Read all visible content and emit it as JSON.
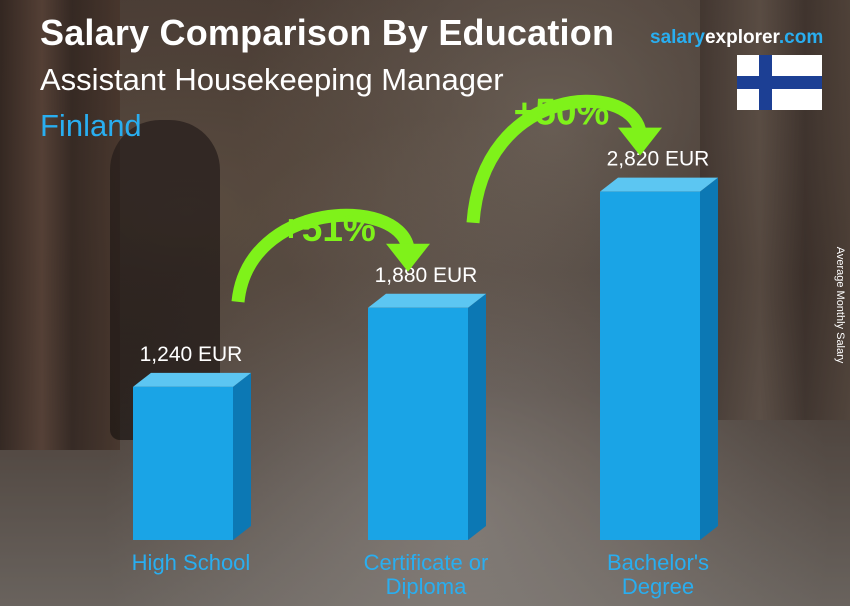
{
  "header": {
    "title": "Salary Comparison By Education",
    "subtitle": "Assistant Housekeeping Manager",
    "country": "Finland"
  },
  "brand": {
    "part1": "salary",
    "part2": "explorer",
    "part3": ".com"
  },
  "flag": {
    "name": "finland-flag",
    "background": "#ffffff",
    "cross": "#1c3f94"
  },
  "side_label": "Average Monthly Salary",
  "colors": {
    "bar_front": "#1aa4e6",
    "bar_side": "#0c78b4",
    "bar_top": "#5cc6f2",
    "arrow": "#7ff21a",
    "accent": "#29aef0"
  },
  "chart_data": {
    "type": "bar",
    "categories": [
      [
        "High School"
      ],
      [
        "Certificate or",
        "Diploma"
      ],
      [
        "Bachelor's",
        "Degree"
      ]
    ],
    "values": [
      1240,
      1880,
      2820
    ],
    "value_labels": [
      "1,240 EUR",
      "1,880 EUR",
      "2,820 EUR"
    ],
    "unit": "EUR",
    "ylabel": "Average Monthly Salary",
    "changes": [
      {
        "from": 0,
        "to": 1,
        "label": "+51%"
      },
      {
        "from": 1,
        "to": 2,
        "label": "+50%"
      }
    ],
    "ylim": [
      0,
      3400
    ]
  }
}
